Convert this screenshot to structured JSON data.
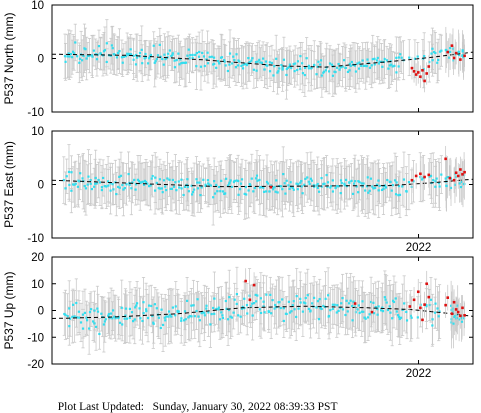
{
  "footer": {
    "label": "Plot Last Updated:",
    "timestamp": "Sunday, January 30, 2022 08:39:33 PST"
  },
  "colors": {
    "primary_points": "#33ddee",
    "recent_points": "#dd1111",
    "error_bars": "#c9c9c9",
    "trend_line": "#000000",
    "axis": "#000000"
  },
  "chart_data": [
    {
      "type": "scatter",
      "ylabel": "P537 North (mm)",
      "ylim": [
        -10,
        10
      ],
      "yticks": [
        -10,
        0,
        10
      ],
      "xticks": [
        {
          "pos": 0.8706,
          "label": ""
        }
      ],
      "trend": {
        "x": [
          0,
          0.18,
          0.35,
          0.55,
          0.65,
          0.8,
          0.9,
          1.0
        ],
        "y": [
          0.8,
          0.6,
          -0.2,
          -1.4,
          -1.6,
          -0.6,
          0.2,
          1.2
        ]
      },
      "base_noise": 1.3,
      "error_bar": 3.5,
      "red_groups": [
        {
          "x": [
            0.855,
            0.86,
            0.865,
            0.87,
            0.875,
            0.88,
            0.885,
            0.89,
            0.895
          ],
          "y": [
            -1.8,
            -2.4,
            -3.0,
            -2.6,
            -3.4,
            -2.2,
            -4.2,
            -2.8,
            -1.5
          ]
        },
        {
          "x": [
            0.94,
            0.95,
            0.955,
            0.96,
            0.97,
            0.98
          ],
          "y": [
            1.2,
            2.4,
            0.1,
            1.0,
            -0.2,
            0.5
          ]
        }
      ]
    },
    {
      "type": "scatter",
      "ylabel": "P537 East (mm)",
      "ylim": [
        -10,
        10
      ],
      "yticks": [
        -10,
        0,
        10
      ],
      "xticks": [
        {
          "pos": 0.8706,
          "label": "2022"
        }
      ],
      "trend": {
        "x": [
          0,
          0.2,
          0.4,
          0.6,
          0.8,
          0.9,
          1.0
        ],
        "y": [
          0.8,
          0.2,
          -0.4,
          -0.3,
          -0.2,
          0.3,
          1.0
        ]
      },
      "base_noise": 1.4,
      "error_bar": 4.0,
      "red_groups": [
        {
          "x": [
            0.52,
            0.855,
            0.865,
            0.875,
            0.885,
            0.895
          ],
          "y": [
            -0.5,
            0.8,
            1.6,
            2.0,
            1.4,
            1.8
          ]
        },
        {
          "x": [
            0.935,
            0.945,
            0.955,
            0.96,
            0.965,
            0.97,
            0.975,
            0.98
          ],
          "y": [
            4.8,
            1.2,
            0.8,
            2.2,
            1.6,
            2.8,
            1.9,
            2.3
          ]
        }
      ]
    },
    {
      "type": "scatter",
      "ylabel": "P537 Up (mm)",
      "ylim": [
        -20,
        20
      ],
      "yticks": [
        -20,
        -10,
        0,
        10,
        20
      ],
      "xticks": [
        {
          "pos": 0.8706,
          "label": "2022"
        }
      ],
      "trend": {
        "x": [
          0,
          0.15,
          0.3,
          0.45,
          0.6,
          0.75,
          0.85,
          0.95,
          1.0
        ],
        "y": [
          -3.0,
          -2.4,
          -1.2,
          1.0,
          1.6,
          1.0,
          0.4,
          -1.2,
          -2.2
        ]
      },
      "base_noise": 3.8,
      "error_bar": 8.0,
      "red_groups": [
        {
          "x": [
            0.46,
            0.47,
            0.48,
            0.72,
            0.76
          ],
          "y": [
            11.0,
            4.0,
            9.5,
            2.6,
            -0.6
          ]
        },
        {
          "x": [
            0.85,
            0.86,
            0.87,
            0.875,
            0.88,
            0.885,
            0.89,
            0.895
          ],
          "y": [
            1.5,
            4.0,
            7.0,
            1.0,
            -3.5,
            2.2,
            10.0,
            5.0
          ]
        },
        {
          "x": [
            0.935,
            0.94,
            0.95,
            0.955,
            0.96,
            0.965,
            0.97,
            0.975,
            0.98
          ],
          "y": [
            2.0,
            4.8,
            -1.2,
            3.1,
            0.4,
            -0.6,
            -2.0,
            1.0,
            -1.8
          ]
        }
      ]
    }
  ]
}
